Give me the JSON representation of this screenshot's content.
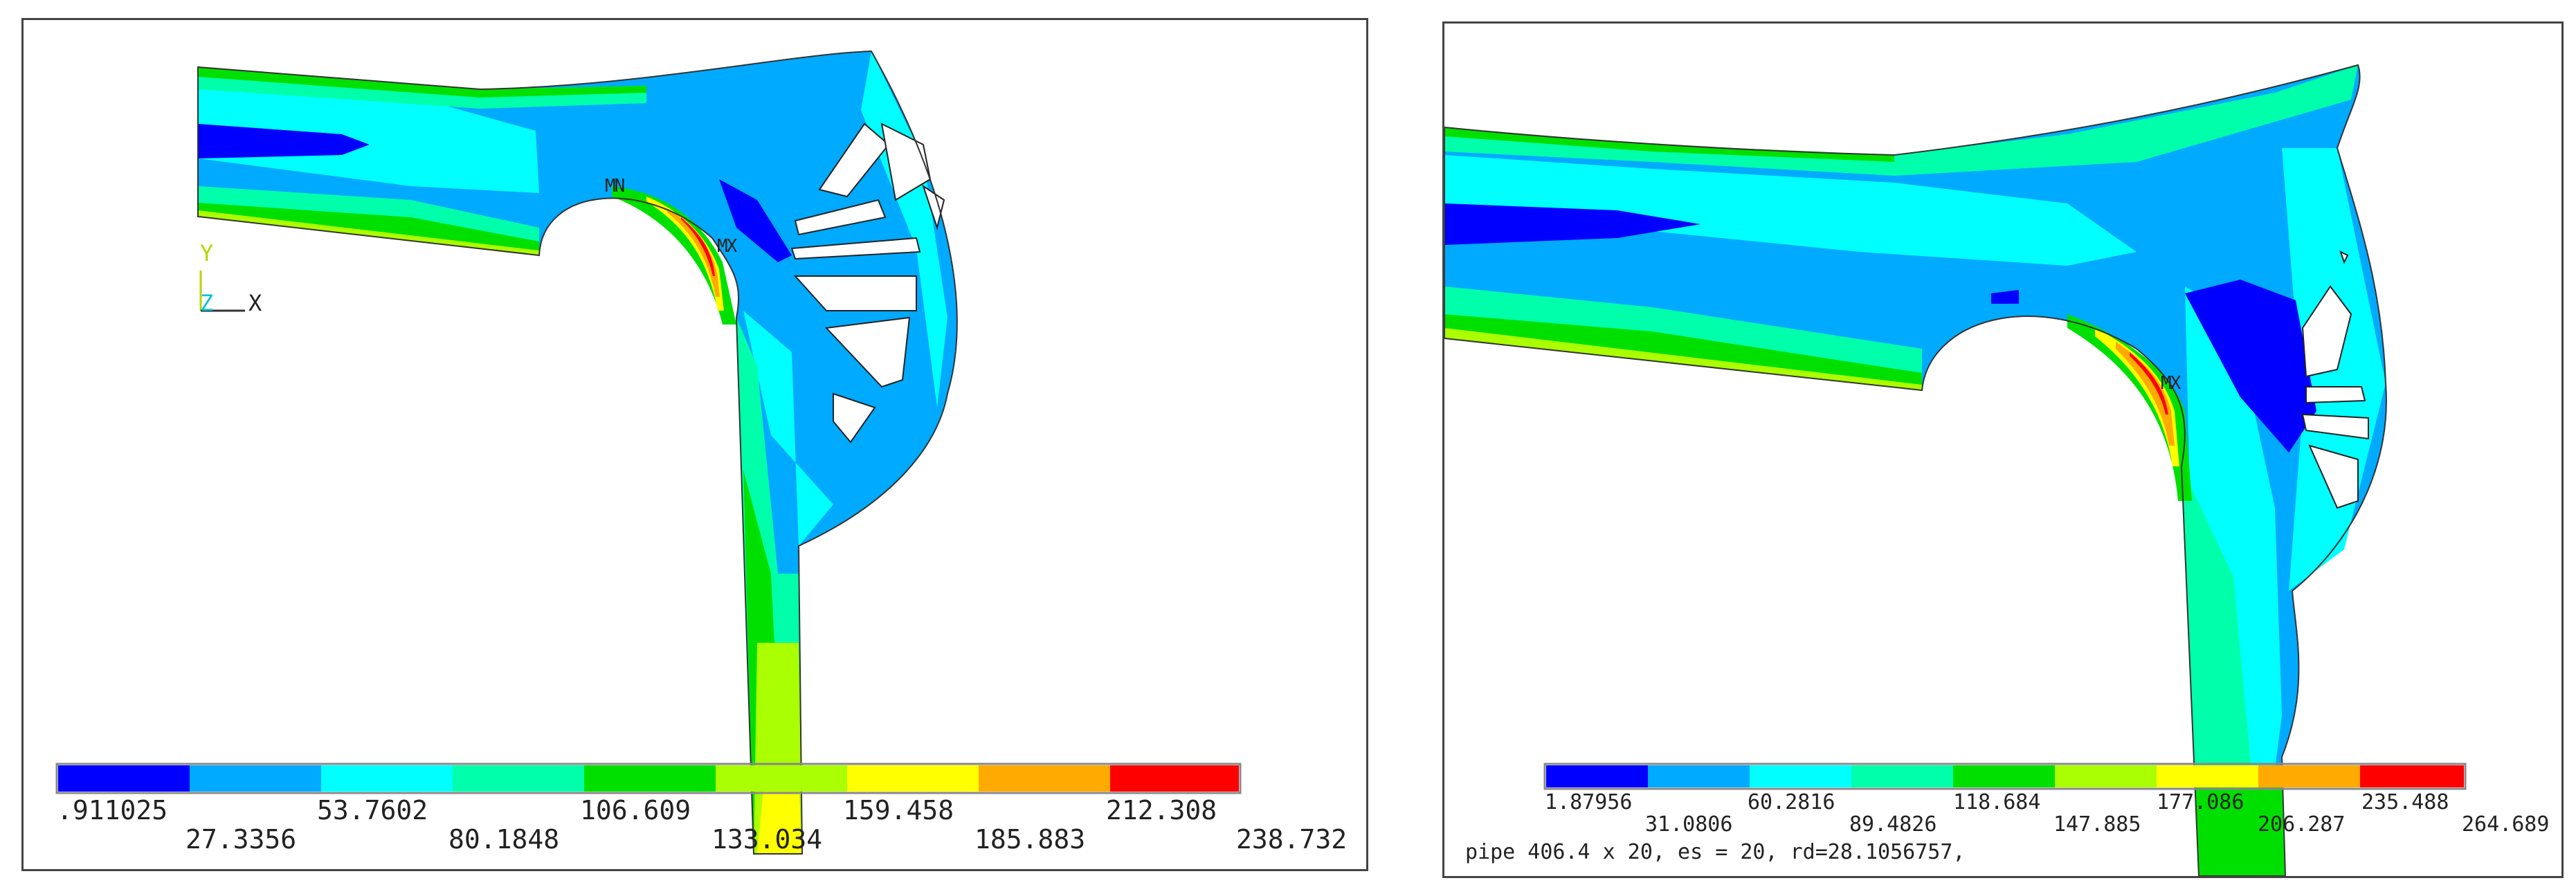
{
  "colors": {
    "c1": "#0000ff",
    "c2": "#00aaff",
    "c3": "#00ffff",
    "c4": "#00ffaa",
    "c5": "#00e000",
    "c6": "#aaff00",
    "c7": "#ffff00",
    "c8": "#ffaa00",
    "c9": "#ff0000",
    "background": "#ffffff",
    "frame": "#444444"
  },
  "left_plot": {
    "markers": {
      "min": "MN",
      "max": "MX"
    },
    "triad": {
      "y": "Y",
      "z": "Z",
      "x": "X"
    },
    "legend_top": [
      ".911025",
      "53.7602",
      "106.609",
      "159.458",
      "212.308"
    ],
    "legend_bottom": [
      "27.3356",
      "80.1848",
      "133.034",
      "185.883",
      "238.732"
    ]
  },
  "right_plot": {
    "markers": {
      "max": "MX"
    },
    "legend_top": [
      "1.87956",
      "60.2816",
      "118.684",
      "177.086",
      "235.488"
    ],
    "legend_bottom": [
      "31.0806",
      "89.4826",
      "147.885",
      "206.287",
      "264.689"
    ],
    "caption": "pipe 406.4 x 20, es = 20, rd=28.1056757,"
  }
}
